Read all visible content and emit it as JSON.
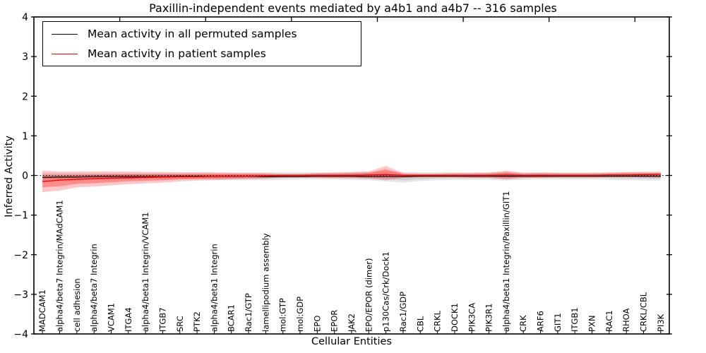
{
  "figure": {
    "title": "Paxillin-independent events mediated by a4b1 and a4b7 -- 316 samples",
    "xlabel": "Cellular Entities",
    "ylabel": "Inferred Activity",
    "background": "#ffffff"
  },
  "legend": {
    "entries": [
      {
        "label": "Mean activity in all permuted samples",
        "color": "#000000"
      },
      {
        "label": "Mean activity in patient samples",
        "color": "#ff0000"
      }
    ],
    "position": "upper left"
  },
  "colors": {
    "axis": "#000000",
    "permuted_line": "#000000",
    "patient_line": "#ff0000",
    "permuted_band": "#000000",
    "patient_band": "#ff0000",
    "zero_line": "#000000"
  },
  "chart_data": {
    "type": "line",
    "title": "Paxillin-independent events mediated by a4b1 and a4b7 -- 316 samples",
    "xlabel": "Cellular Entities",
    "ylabel": "Inferred Activity",
    "ylim": [
      -4,
      4
    ],
    "grid": false,
    "legend_position": "upper left",
    "tick_label_rotation": 90,
    "zero_line_style": "dotted",
    "y_tick_values": [
      4,
      3,
      2,
      1,
      0,
      -1,
      -2,
      -3,
      -4
    ],
    "y_tick_labels": [
      "4",
      "3",
      "2",
      "1",
      "0",
      "−1",
      "−2",
      "−3",
      "−4"
    ],
    "x_major_tick_values": [
      5,
      10,
      15,
      20,
      25,
      30,
      35
    ],
    "categories": [
      "MADCAM1",
      "alpha4/beta7 Integrin/MAdCAM1",
      "cell adhesion",
      "alpha4/beta7 Integrin",
      "VCAM1",
      "ITGA4",
      "alpha4/beta1 Integrin/VCAM1",
      "ITGB7",
      "SRC",
      "PTK2",
      "alpha4/beta1 Integrin",
      "BCAR1",
      "Rac1/GTP",
      "lamellipodium assembly",
      "mol:GTP",
      "mol:GDP",
      "EPO",
      "EPOR",
      "JAK2",
      "EPO/EPOR (dimer)",
      "p130Cas/Crk/Dock1",
      "Rac1/GDP",
      "CBL",
      "CRKL",
      "DOCK1",
      "PIK3CA",
      "PIK3R1",
      "alpha4/beta1 Integrin/Paxillin/GIT1",
      "CRK",
      "ARF6",
      "GIT1",
      "ITGB1",
      "PXN",
      "RAC1",
      "RHOA",
      "CRKL/CBL",
      "PI3K"
    ],
    "series": [
      {
        "name": "Mean activity in all permuted samples",
        "color": "#000000",
        "values": [
          -0.05,
          -0.04,
          -0.04,
          -0.03,
          -0.03,
          -0.03,
          -0.03,
          -0.03,
          -0.02,
          -0.02,
          -0.02,
          -0.02,
          -0.02,
          -0.03,
          -0.03,
          -0.03,
          -0.02,
          -0.02,
          -0.02,
          -0.03,
          -0.03,
          -0.03,
          -0.02,
          -0.02,
          -0.02,
          -0.02,
          -0.02,
          -0.02,
          -0.02,
          -0.02,
          -0.02,
          -0.02,
          -0.02,
          -0.02,
          -0.02,
          -0.02,
          -0.02
        ]
      },
      {
        "name": "Mean activity in patient samples",
        "color": "#ff0000",
        "values": [
          -0.15,
          -0.12,
          -0.1,
          -0.08,
          -0.07,
          -0.06,
          -0.05,
          -0.04,
          -0.03,
          -0.03,
          -0.02,
          -0.02,
          -0.02,
          -0.01,
          0.0,
          0.0,
          0.0,
          0.0,
          0.0,
          0.01,
          0.02,
          0.0,
          0.0,
          0.0,
          0.0,
          0.0,
          0.0,
          0.01,
          0.0,
          0.0,
          0.0,
          0.0,
          0.0,
          0.01,
          0.01,
          0.02,
          0.03
        ]
      }
    ],
    "bands": [
      {
        "name": "permuted-samples-range",
        "color": "#000000",
        "upper": [
          0.06,
          0.06,
          0.06,
          0.06,
          0.06,
          0.06,
          0.06,
          0.06,
          0.06,
          0.06,
          0.06,
          0.07,
          0.07,
          0.08,
          0.08,
          0.08,
          0.08,
          0.08,
          0.09,
          0.09,
          0.1,
          0.09,
          0.08,
          0.08,
          0.08,
          0.08,
          0.08,
          0.09,
          0.08,
          0.08,
          0.08,
          0.08,
          0.08,
          0.08,
          0.09,
          0.1,
          0.1
        ],
        "lower": [
          -0.1,
          -0.1,
          -0.1,
          -0.09,
          -0.09,
          -0.09,
          -0.09,
          -0.09,
          -0.09,
          -0.1,
          -0.11,
          -0.12,
          -0.12,
          -0.12,
          -0.11,
          -0.1,
          -0.1,
          -0.1,
          -0.11,
          -0.12,
          -0.15,
          -0.18,
          -0.14,
          -0.12,
          -0.11,
          -0.11,
          -0.11,
          -0.13,
          -0.11,
          -0.1,
          -0.1,
          -0.1,
          -0.1,
          -0.11,
          -0.12,
          -0.13,
          -0.13
        ]
      },
      {
        "name": "patient-samples-range",
        "color": "#ff0000",
        "upper": [
          0.12,
          0.1,
          0.1,
          0.1,
          0.1,
          0.1,
          0.09,
          0.09,
          0.08,
          0.08,
          0.08,
          0.07,
          0.07,
          0.06,
          0.04,
          0.04,
          0.06,
          0.07,
          0.08,
          0.1,
          0.24,
          0.06,
          0.05,
          0.05,
          0.06,
          0.06,
          0.07,
          0.12,
          0.06,
          0.07,
          0.06,
          0.06,
          0.06,
          0.07,
          0.08,
          0.08,
          0.08
        ],
        "lower": [
          -0.42,
          -0.38,
          -0.3,
          -0.28,
          -0.25,
          -0.22,
          -0.2,
          -0.18,
          -0.15,
          -0.13,
          -0.12,
          -0.1,
          -0.09,
          -0.08,
          -0.05,
          -0.05,
          -0.06,
          -0.07,
          -0.07,
          -0.08,
          -0.12,
          -0.06,
          -0.05,
          -0.05,
          -0.05,
          -0.06,
          -0.06,
          -0.1,
          -0.06,
          -0.06,
          -0.05,
          -0.05,
          -0.05,
          -0.04,
          -0.04,
          -0.05,
          -0.06
        ]
      }
    ]
  }
}
